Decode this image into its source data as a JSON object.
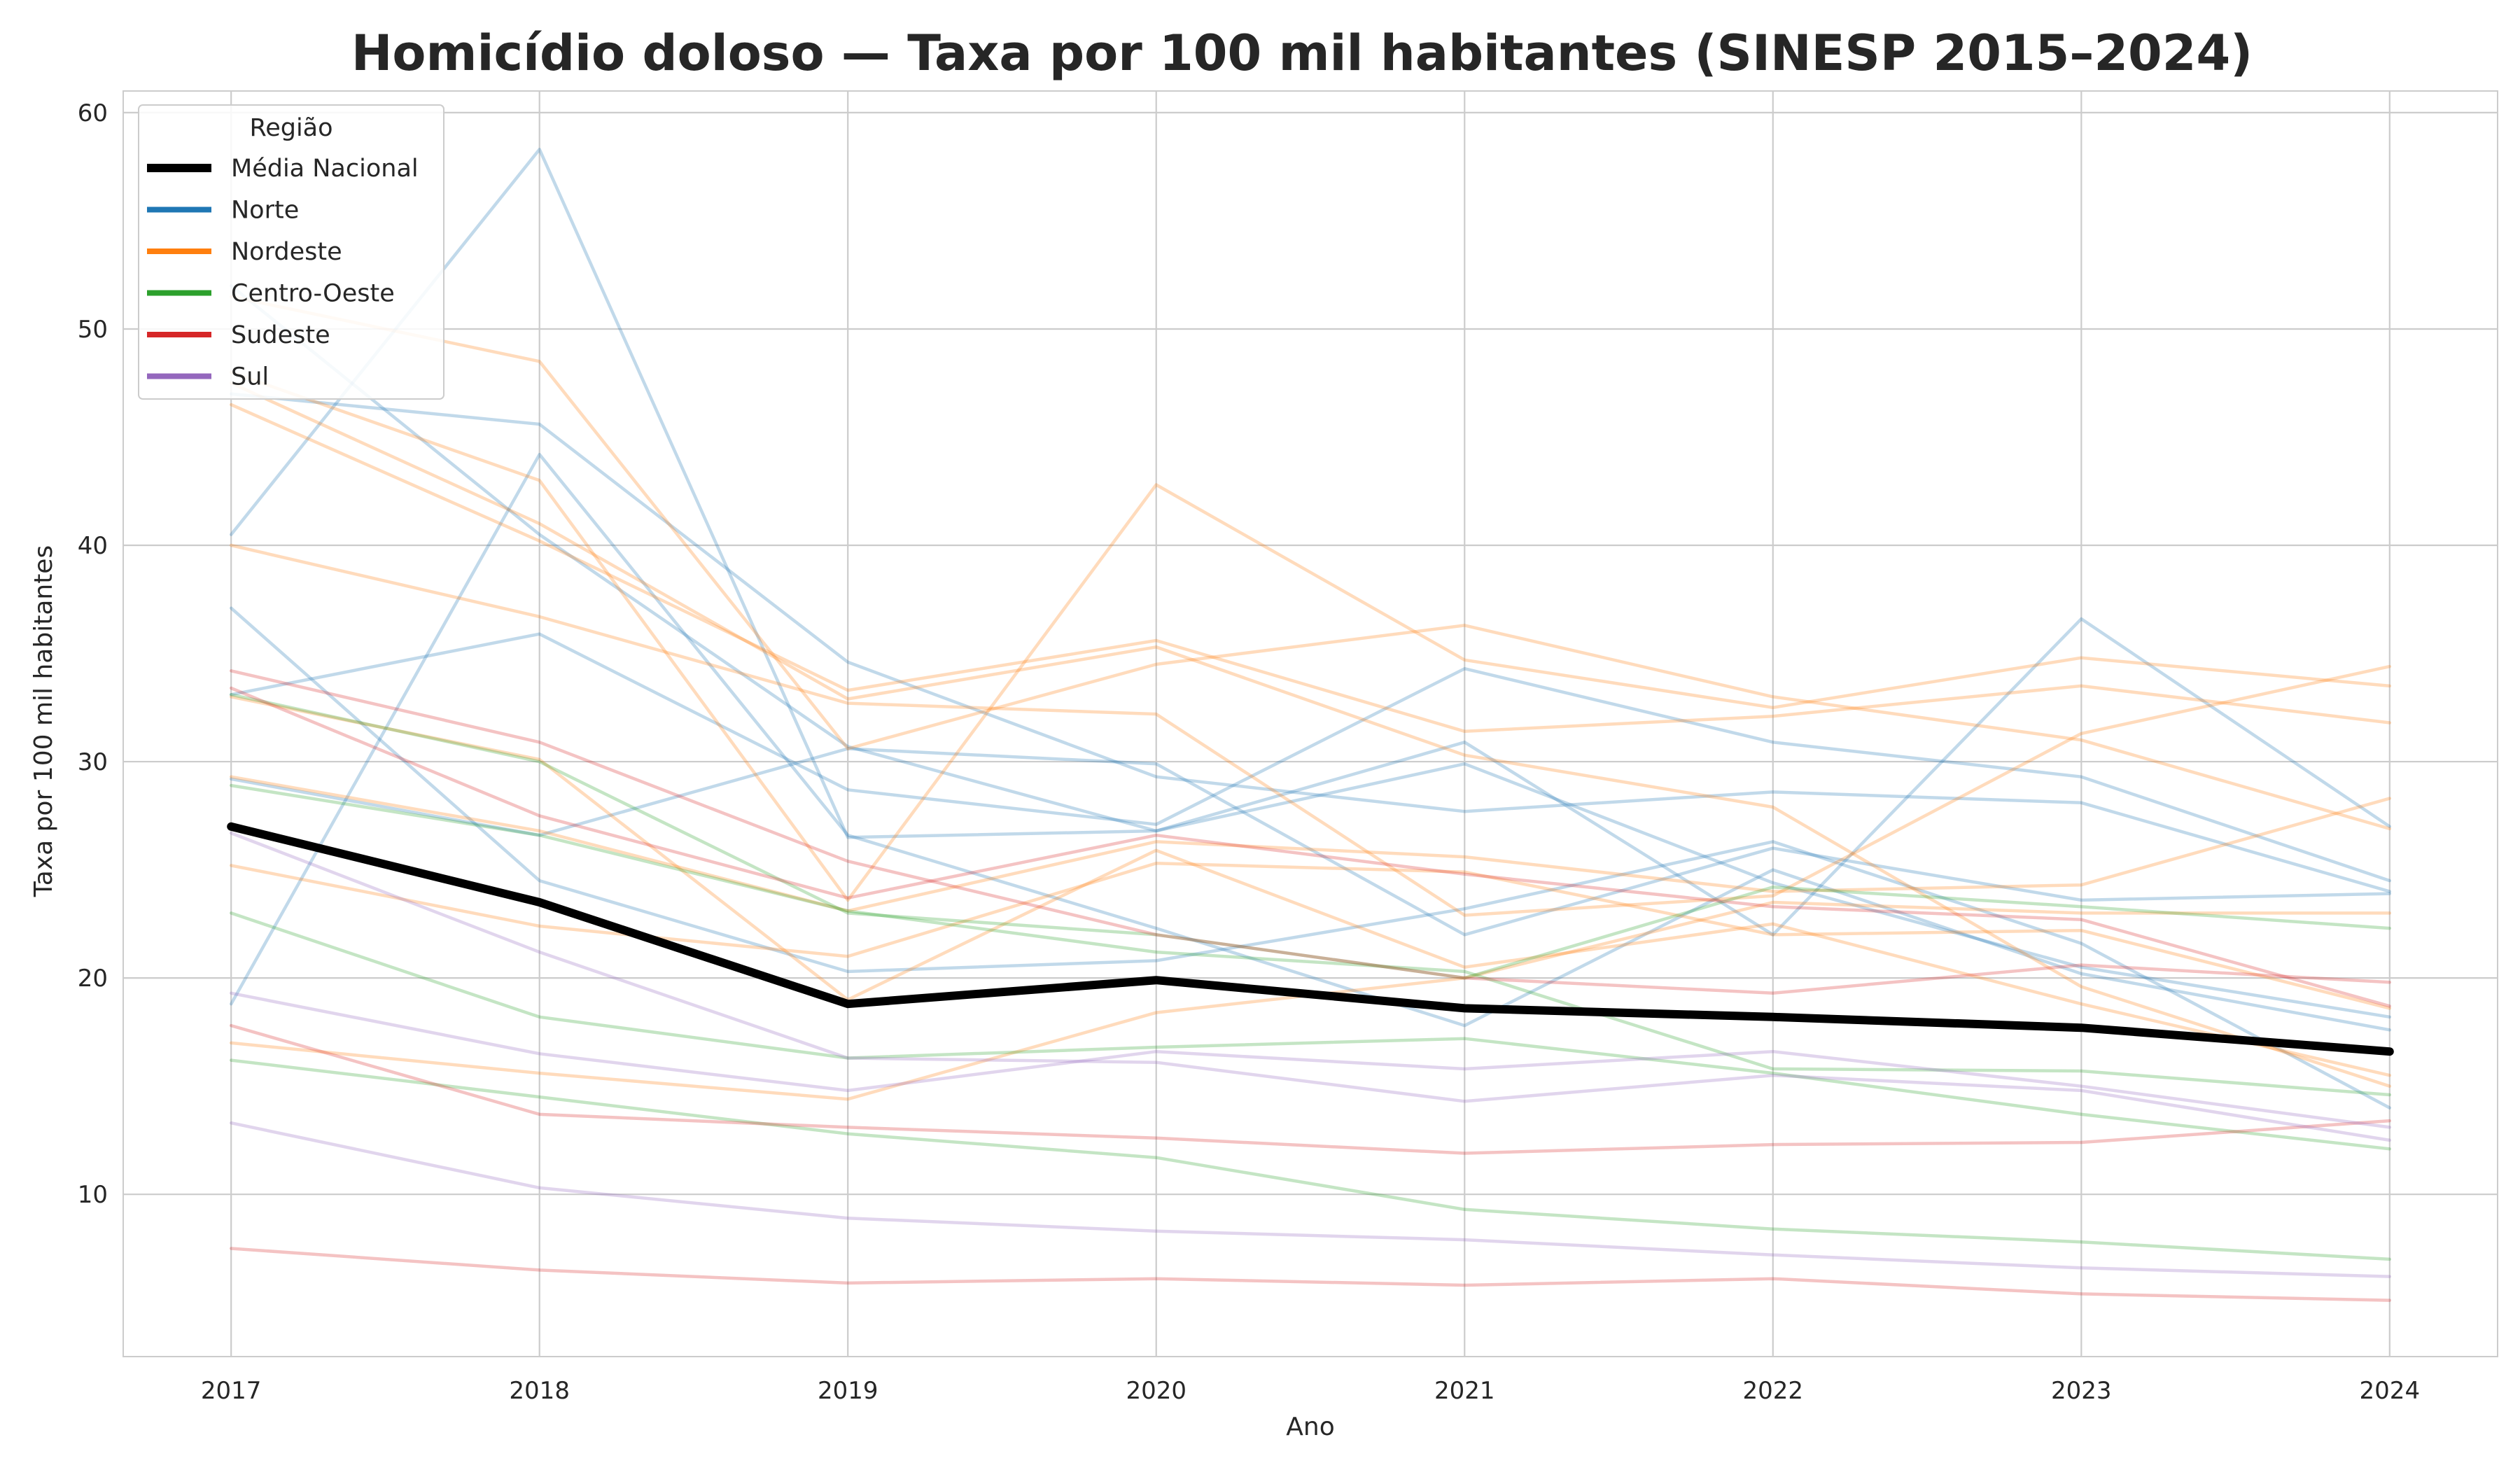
{
  "chart_data": {
    "type": "line",
    "title": "Homicídio doloso — Taxa por 100 mil habitantes (SINESP 2015–2024)",
    "xlabel": "Ano",
    "ylabel": "Taxa por 100 mil habitantes",
    "x": [
      2017,
      2018,
      2019,
      2020,
      2021,
      2022,
      2023,
      2024
    ],
    "x_tick_labels": [
      "2017",
      "2018",
      "2019",
      "2020",
      "2021",
      "2022",
      "2023",
      "2024"
    ],
    "y_ticks": [
      10,
      20,
      30,
      40,
      50,
      60
    ],
    "y_tick_labels": [
      "10",
      "20",
      "30",
      "40",
      "50",
      "60"
    ],
    "xlim": [
      2016.65,
      2024.35
    ],
    "ylim": [
      2.5,
      61
    ],
    "grid": true,
    "legend": {
      "title": "Região",
      "placement": "top-left",
      "entries": [
        {
          "label": "Média Nacional",
          "color": "#000000"
        },
        {
          "label": "Norte",
          "color": "#1f77b4"
        },
        {
          "label": "Nordeste",
          "color": "#ff7f0e"
        },
        {
          "label": "Centro-Oeste",
          "color": "#2ca02c"
        },
        {
          "label": "Sudeste",
          "color": "#d62728"
        },
        {
          "label": "Sul",
          "color": "#9467bd"
        }
      ]
    },
    "series": [
      {
        "region": "Norte",
        "values": [
          40.5,
          58.3,
          26.5,
          26.8,
          30.9,
          22.0,
          36.6,
          27.0
        ]
      },
      {
        "region": "Norte",
        "values": [
          47.0,
          45.6,
          34.6,
          29.3,
          27.7,
          28.6,
          28.1,
          24.0
        ]
      },
      {
        "region": "Norte",
        "values": [
          37.1,
          24.5,
          20.3,
          20.8,
          23.2,
          26.3,
          21.6,
          14.0
        ]
      },
      {
        "region": "Norte",
        "values": [
          33.1,
          35.9,
          28.7,
          27.1,
          34.3,
          30.9,
          29.3,
          24.5
        ]
      },
      {
        "region": "Norte",
        "values": [
          18.8,
          44.2,
          26.6,
          22.3,
          17.8,
          25.0,
          20.2,
          17.6
        ]
      },
      {
        "region": "Norte",
        "values": [
          29.2,
          26.6,
          30.6,
          29.9,
          22.0,
          26.0,
          23.6,
          23.9
        ]
      },
      {
        "region": "Norte",
        "values": [
          52.0,
          40.5,
          30.7,
          26.8,
          29.9,
          24.4,
          20.5,
          18.2
        ]
      },
      {
        "region": "Nordeste",
        "values": [
          51.5,
          48.5,
          30.6,
          34.5,
          36.3,
          33.0,
          31.0,
          26.9
        ]
      },
      {
        "region": "Nordeste",
        "values": [
          48.0,
          43.0,
          23.6,
          42.8,
          34.7,
          32.5,
          34.8,
          33.5
        ]
      },
      {
        "region": "Nordeste",
        "values": [
          46.5,
          40.2,
          33.3,
          35.6,
          31.4,
          32.1,
          33.5,
          31.8
        ]
      },
      {
        "region": "Nordeste",
        "values": [
          40.0,
          36.7,
          32.7,
          32.2,
          22.9,
          23.8,
          31.3,
          34.4
        ]
      },
      {
        "region": "Nordeste",
        "values": [
          47.5,
          41.0,
          32.9,
          35.3,
          30.3,
          27.9,
          19.6,
          15.0
        ]
      },
      {
        "region": "Nordeste",
        "values": [
          29.3,
          26.8,
          23.1,
          26.3,
          25.6,
          24.0,
          24.3,
          28.3
        ]
      },
      {
        "region": "Nordeste",
        "values": [
          25.2,
          22.4,
          21.0,
          25.3,
          24.9,
          22.0,
          22.2,
          18.6
        ]
      },
      {
        "region": "Nordeste",
        "values": [
          33.0,
          30.1,
          19.0,
          25.9,
          20.5,
          22.5,
          18.8,
          15.5
        ]
      },
      {
        "region": "Nordeste",
        "values": [
          17.0,
          15.6,
          14.4,
          18.4,
          20.0,
          23.5,
          23.0,
          23.0
        ]
      },
      {
        "region": "Centro-Oeste",
        "values": [
          33.1,
          30.0,
          23.0,
          22.0,
          20.0,
          24.2,
          23.3,
          22.3
        ]
      },
      {
        "region": "Centro-Oeste",
        "values": [
          28.9,
          26.6,
          23.1,
          21.2,
          20.3,
          15.8,
          15.7,
          14.6
        ]
      },
      {
        "region": "Centro-Oeste",
        "values": [
          23.0,
          18.2,
          16.3,
          16.8,
          17.2,
          15.6,
          13.7,
          12.1
        ]
      },
      {
        "region": "Centro-Oeste",
        "values": [
          16.2,
          14.5,
          12.8,
          11.7,
          9.3,
          8.4,
          7.8,
          7.0
        ]
      },
      {
        "region": "Sudeste",
        "values": [
          34.2,
          30.9,
          25.4,
          22.0,
          20.0,
          19.3,
          20.6,
          19.8
        ]
      },
      {
        "region": "Sudeste",
        "values": [
          33.4,
          27.5,
          23.7,
          26.6,
          24.8,
          23.3,
          22.7,
          18.7
        ]
      },
      {
        "region": "Sudeste",
        "values": [
          17.8,
          13.7,
          13.1,
          12.6,
          11.9,
          12.3,
          12.4,
          13.4
        ]
      },
      {
        "region": "Sudeste",
        "values": [
          7.5,
          6.5,
          5.9,
          6.1,
          5.8,
          6.1,
          5.4,
          5.1
        ]
      },
      {
        "region": "Sul",
        "values": [
          26.7,
          21.2,
          16.3,
          16.1,
          14.3,
          15.5,
          14.8,
          12.5
        ]
      },
      {
        "region": "Sul",
        "values": [
          19.3,
          16.5,
          14.8,
          16.6,
          15.8,
          16.6,
          15.0,
          13.1
        ]
      },
      {
        "region": "Sul",
        "values": [
          13.3,
          10.3,
          8.9,
          8.3,
          7.9,
          7.2,
          6.6,
          6.2
        ]
      },
      {
        "region": "Média Nacional",
        "name": "Média Nacional",
        "values": [
          27.0,
          23.5,
          18.8,
          19.9,
          18.6,
          18.2,
          17.7,
          16.6
        ]
      }
    ]
  }
}
